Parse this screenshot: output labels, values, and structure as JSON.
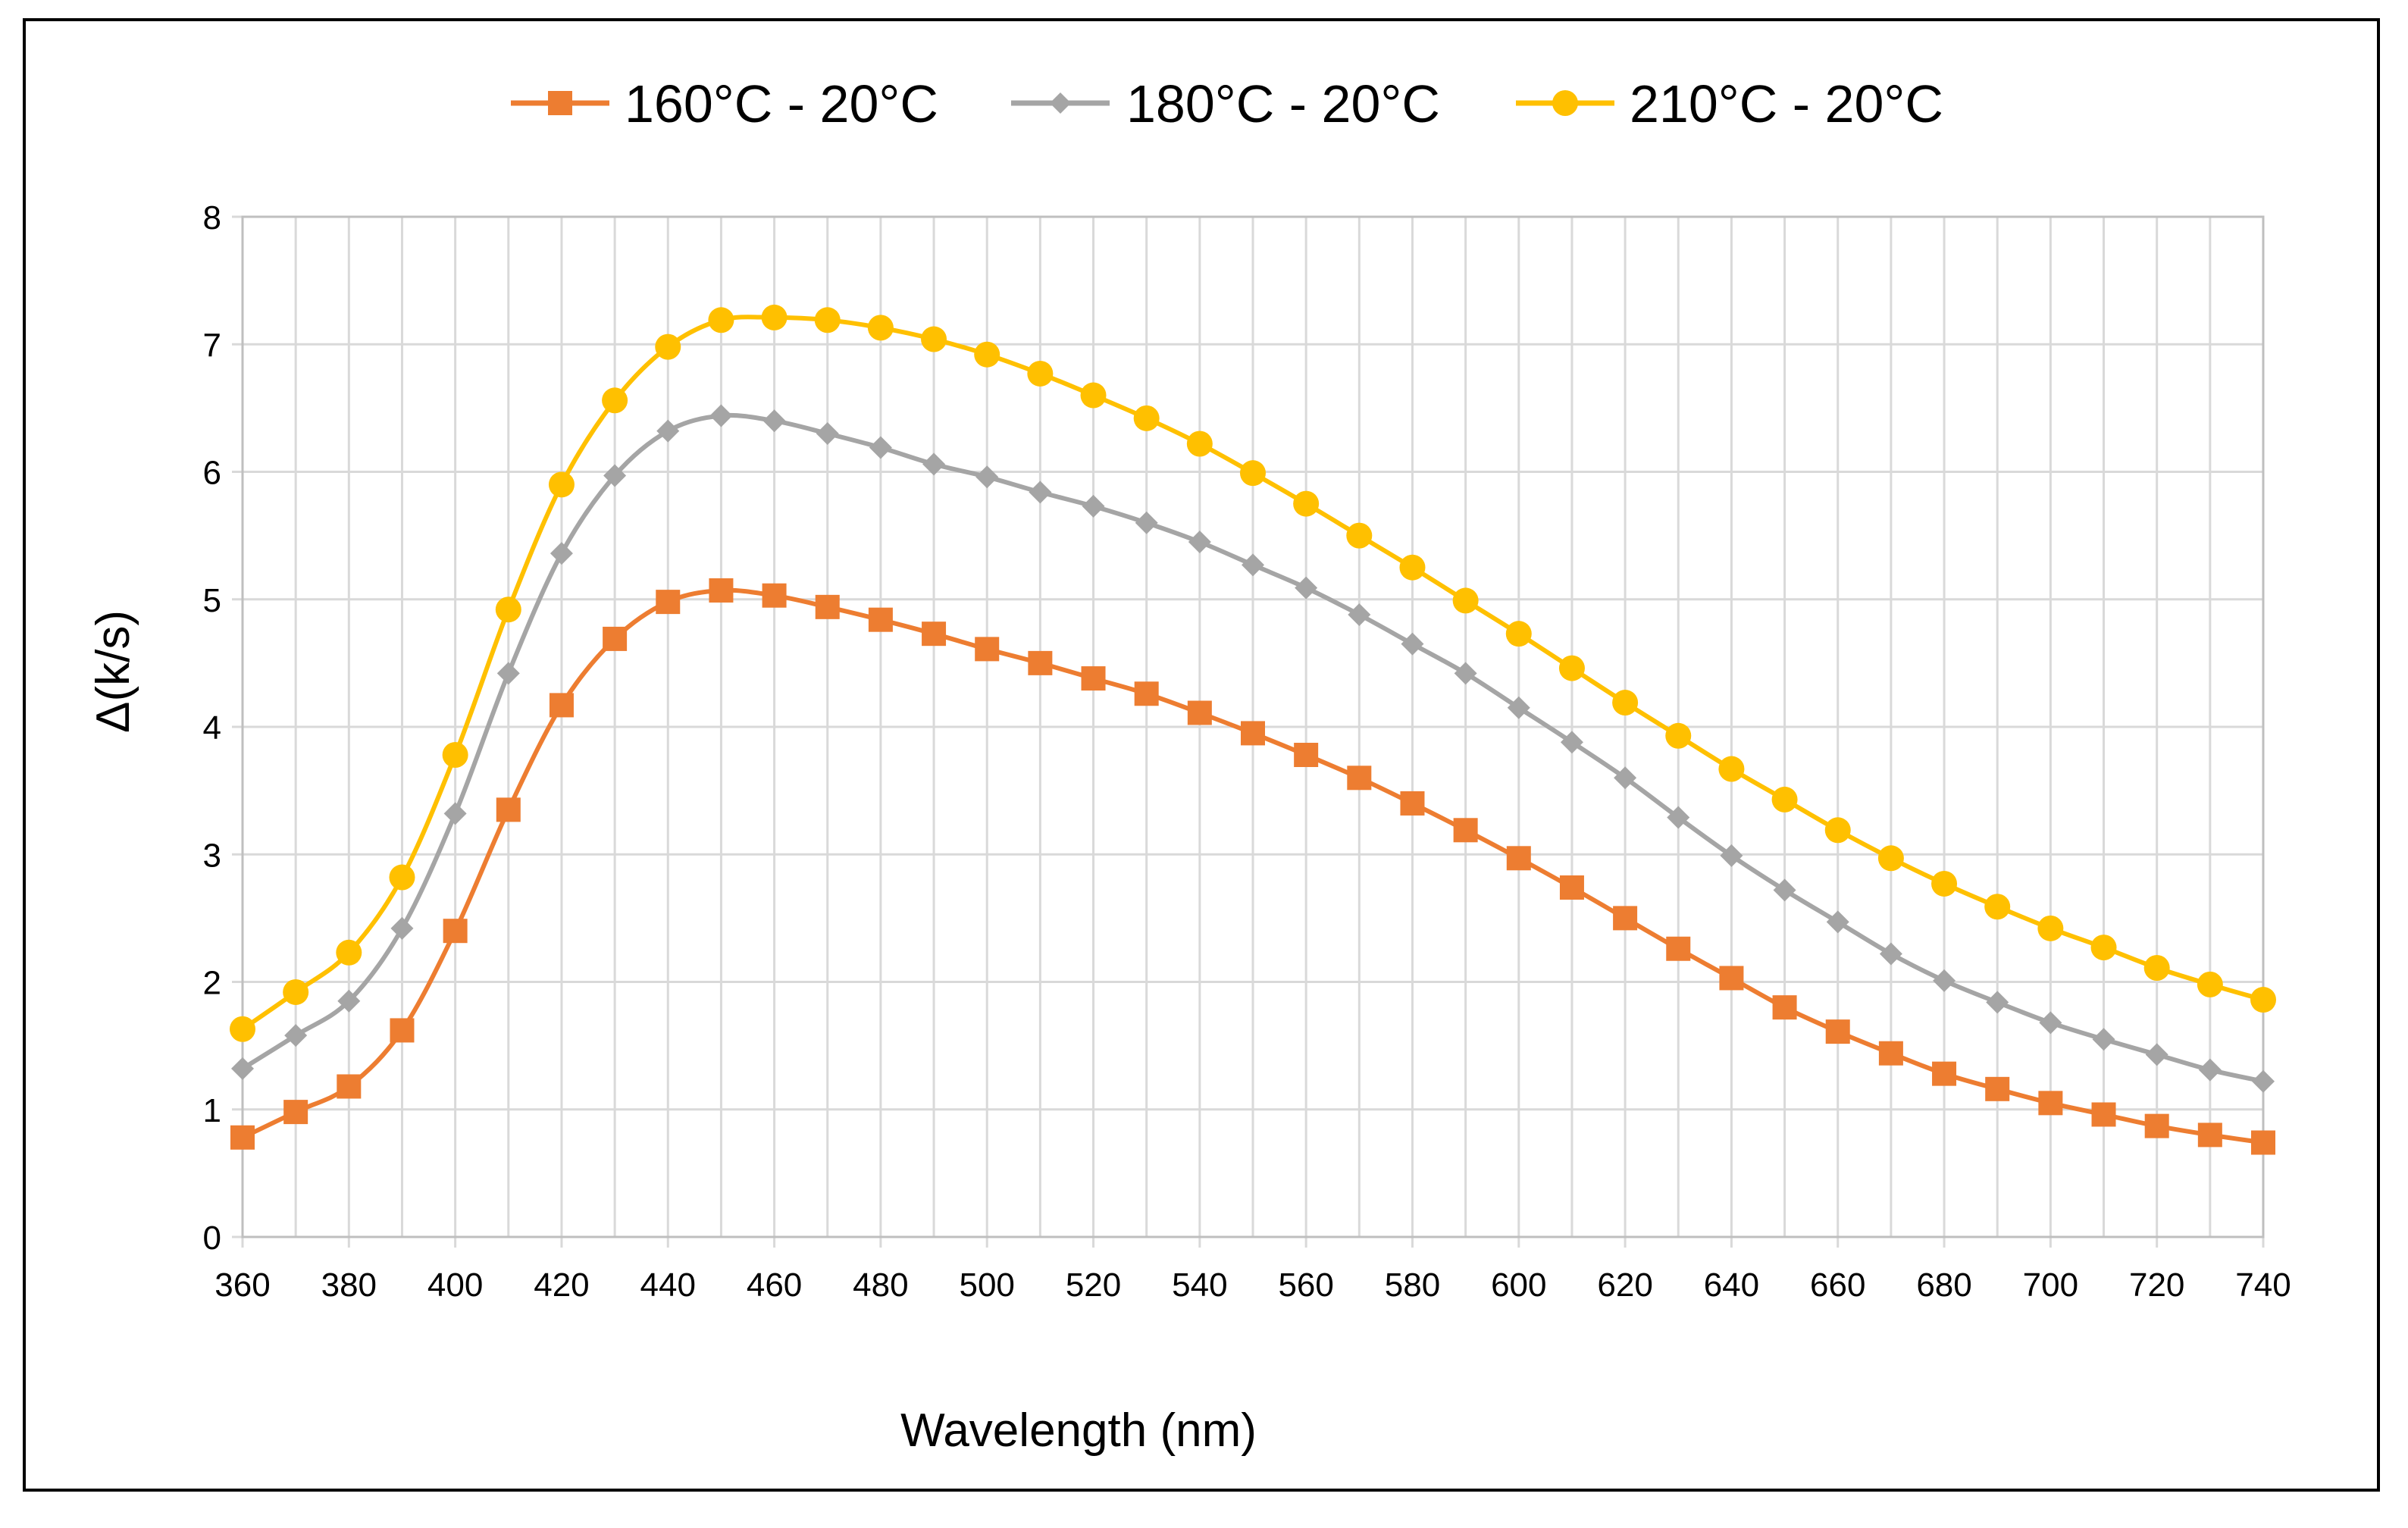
{
  "chart_data": {
    "type": "line",
    "title": "",
    "xlabel": "Wavelength (nm)",
    "ylabel": "Δ(k/s)",
    "xlim": [
      360,
      740
    ],
    "ylim": [
      0,
      8
    ],
    "x_ticks": [
      360,
      380,
      400,
      420,
      440,
      460,
      480,
      500,
      520,
      540,
      560,
      580,
      600,
      620,
      640,
      660,
      680,
      700,
      720,
      740
    ],
    "y_ticks": [
      0,
      1,
      2,
      3,
      4,
      5,
      6,
      7,
      8
    ],
    "grid": true,
    "legend_position": "top",
    "x": [
      360,
      370,
      380,
      390,
      400,
      410,
      420,
      430,
      440,
      450,
      460,
      470,
      480,
      490,
      500,
      510,
      520,
      530,
      540,
      550,
      560,
      570,
      580,
      590,
      600,
      610,
      620,
      630,
      640,
      650,
      660,
      670,
      680,
      690,
      700,
      710,
      720,
      730,
      740
    ],
    "series": [
      {
        "name": "160°C - 20°C",
        "color": "#ED7D31",
        "marker": "square",
        "values": [
          0.78,
          0.98,
          1.18,
          1.62,
          2.4,
          3.35,
          4.17,
          4.69,
          4.98,
          5.07,
          5.03,
          4.94,
          4.84,
          4.73,
          4.61,
          4.5,
          4.38,
          4.26,
          4.11,
          3.95,
          3.78,
          3.6,
          3.4,
          3.19,
          2.97,
          2.74,
          2.5,
          2.26,
          2.03,
          1.8,
          1.61,
          1.44,
          1.28,
          1.16,
          1.05,
          0.96,
          0.87,
          0.8,
          0.74
        ]
      },
      {
        "name": "180°C - 20°C",
        "color": "#A5A5A5",
        "marker": "diamond",
        "values": [
          1.32,
          1.58,
          1.85,
          2.42,
          3.32,
          4.42,
          5.36,
          5.97,
          6.32,
          6.44,
          6.4,
          6.3,
          6.19,
          6.06,
          5.96,
          5.84,
          5.73,
          5.6,
          5.45,
          5.27,
          5.09,
          4.88,
          4.65,
          4.42,
          4.15,
          3.88,
          3.6,
          3.29,
          2.99,
          2.72,
          2.47,
          2.22,
          2.01,
          1.84,
          1.68,
          1.55,
          1.43,
          1.31,
          1.22
        ]
      },
      {
        "name": "210°C - 20°C",
        "color": "#FFC000",
        "marker": "circle",
        "values": [
          1.63,
          1.92,
          2.23,
          2.82,
          3.78,
          4.92,
          5.9,
          6.56,
          6.98,
          7.19,
          7.21,
          7.19,
          7.13,
          7.04,
          6.92,
          6.77,
          6.6,
          6.42,
          6.22,
          5.99,
          5.75,
          5.5,
          5.25,
          4.99,
          4.73,
          4.46,
          4.19,
          3.93,
          3.67,
          3.43,
          3.19,
          2.97,
          2.77,
          2.59,
          2.42,
          2.27,
          2.11,
          1.98,
          1.86
        ]
      }
    ]
  }
}
